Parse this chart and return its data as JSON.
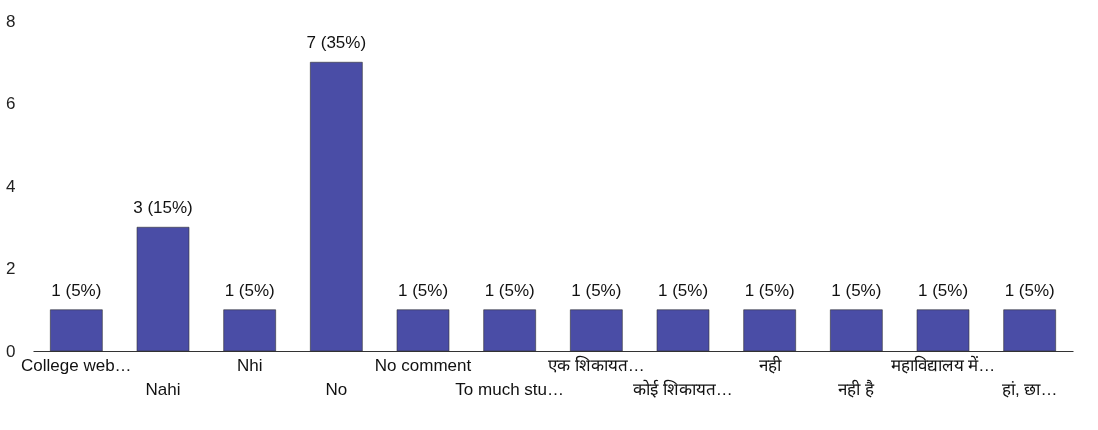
{
  "chart_data": {
    "type": "bar",
    "categories": [
      "College web…",
      "Nahi",
      "Nhi",
      "No",
      "No comment",
      "To much stu…",
      "एक शिकायत…",
      "कोई शिकायत…",
      "नही",
      "नही है",
      "महाविद्यालय में…",
      "हां, छा…"
    ],
    "values": [
      1,
      3,
      1,
      7,
      1,
      1,
      1,
      1,
      1,
      1,
      1,
      1
    ],
    "value_labels": [
      "1 (5%)",
      "3 (15%)",
      "1 (5%)",
      "7 (35%)",
      "1 (5%)",
      "1 (5%)",
      "1 (5%)",
      "1 (5%)",
      "1 (5%)",
      "1 (5%)",
      "1 (5%)",
      "1 (5%)"
    ],
    "color": "#4a4da6",
    "ylim": [
      0,
      8
    ],
    "yticks": [
      0,
      2,
      4,
      6,
      8
    ],
    "grid": false
  }
}
